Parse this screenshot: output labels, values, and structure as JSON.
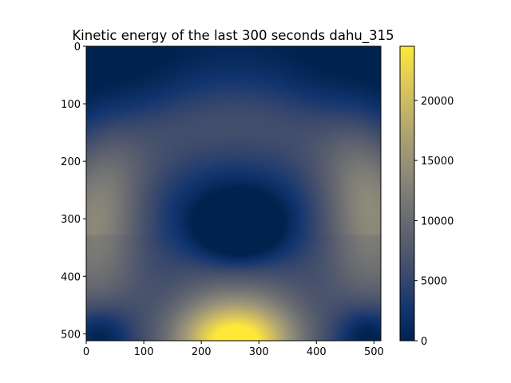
{
  "chart_data": {
    "type": "heatmap",
    "title": "Kinetic energy of the last 300 seconds dahu_315",
    "xlabel": "",
    "ylabel": "",
    "grid_size": [
      512,
      512
    ],
    "xlim": [
      0,
      512
    ],
    "ylim": [
      512,
      0
    ],
    "x_ticks": [
      "0",
      "100",
      "200",
      "300",
      "400",
      "500"
    ],
    "y_ticks": [
      "0",
      "100",
      "200",
      "300",
      "400",
      "500"
    ],
    "colormap": "cividis",
    "colormap_stops": [
      "#00224e",
      "#123570",
      "#3b496c",
      "#575d6d",
      "#707173",
      "#8a8779",
      "#a59c74",
      "#c3b369",
      "#e1cc55",
      "#fee838"
    ],
    "value_range": [
      0,
      24500
    ],
    "colorbar_ticks": [
      {
        "value": 0,
        "label": "0"
      },
      {
        "value": 5000,
        "label": "5000"
      },
      {
        "value": 10000,
        "label": "10000"
      },
      {
        "value": 15000,
        "label": "15000"
      },
      {
        "value": 20000,
        "label": "20000"
      }
    ],
    "features": [
      {
        "description": "low-energy minimum",
        "x": 262,
        "y": 318,
        "value": 1200
      },
      {
        "description": "bottom-center maximum",
        "x": 260,
        "y": 505,
        "value": 24500
      },
      {
        "description": "bottom-left minimum",
        "x": 20,
        "y": 500,
        "value": 500
      },
      {
        "description": "bottom-right minimum",
        "x": 490,
        "y": 500,
        "value": 500
      },
      {
        "description": "top-left corner minimum",
        "x": 10,
        "y": 10,
        "value": 300
      },
      {
        "description": "top-right corner minimum",
        "x": 500,
        "y": 10,
        "value": 300
      },
      {
        "description": "left side band",
        "x": 30,
        "y": 320,
        "value": 11000
      },
      {
        "description": "right side band",
        "x": 490,
        "y": 300,
        "value": 11000
      },
      {
        "description": "upper arch",
        "x": 260,
        "y": 160,
        "value": 6500
      }
    ]
  }
}
